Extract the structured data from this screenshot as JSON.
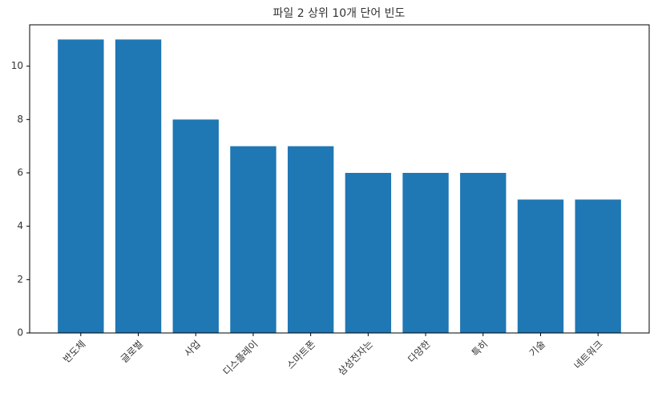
{
  "chart_data": {
    "type": "bar",
    "title": "파일 2 상위 10개 단어 빈도",
    "categories": [
      "반도체",
      "글로벌",
      "사업",
      "디스플레이",
      "스마트폰",
      "삼성전자는",
      "다양한",
      "특히",
      "기술",
      "네트워크"
    ],
    "values": [
      11,
      11,
      8,
      7,
      7,
      6,
      6,
      6,
      5,
      5
    ],
    "color": "#1f77b4",
    "ylim": [
      0,
      11.55
    ],
    "yticks": [
      0,
      2,
      4,
      6,
      8,
      10
    ]
  }
}
